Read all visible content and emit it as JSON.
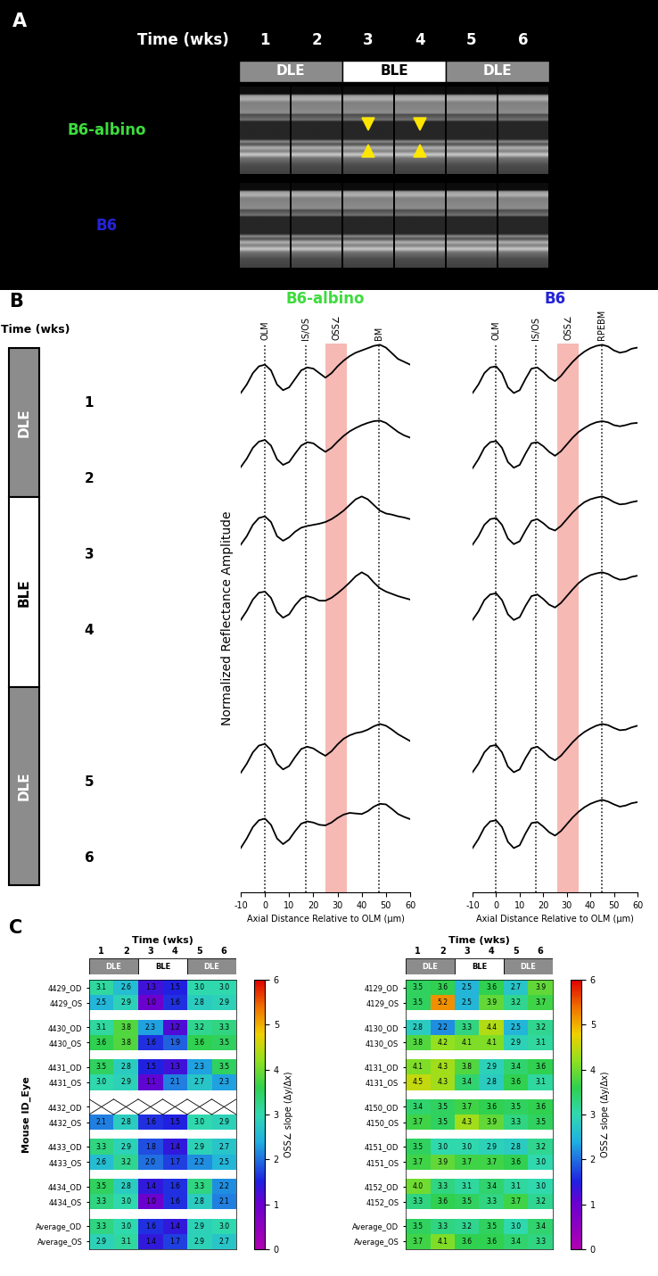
{
  "panel_labels": [
    "A",
    "B",
    "C"
  ],
  "time_label": "Time (wks)",
  "phases": [
    {
      "label": "DLE",
      "weeks": [
        1,
        2
      ],
      "color": "#8c8c8c"
    },
    {
      "label": "BLE",
      "weeks": [
        3,
        4
      ],
      "color": "#ffffff"
    },
    {
      "label": "DLE",
      "weeks": [
        5,
        6
      ],
      "color": "#8c8c8c"
    }
  ],
  "panel_a": {
    "rows": [
      {
        "label": "B6-albino",
        "color": "#3ddc3d",
        "arrow_weeks": [
          3,
          4
        ]
      },
      {
        "label": "B6",
        "color": "#2323d8",
        "arrow_weeks": []
      }
    ]
  },
  "chart_data": [
    {
      "type": "line",
      "title": "B6-albino",
      "color": "#3ddc3d",
      "x_label": "Axial Distance Relative to OLM (µm)",
      "y_label": "Normalized Reflectance Amplitude",
      "xlim": [
        -10,
        60
      ],
      "xticks": [
        -10,
        0,
        10,
        20,
        30,
        40,
        50,
        60
      ],
      "ylim": [
        0,
        1.1
      ],
      "tick_labels": "x",
      "line_style": "solid",
      "markers_v": [
        {
          "label": "OLM",
          "x": 0
        },
        {
          "label": "IS/OS",
          "x": 17
        },
        {
          "label": "BM",
          "x": 47
        }
      ],
      "band": {
        "label": "OSS∠",
        "from": 25,
        "to": 34,
        "color": "#f4a29b"
      },
      "x": [
        -10,
        -7.5,
        -5,
        -2.5,
        0,
        2.5,
        5,
        7.5,
        10,
        12.5,
        15,
        17.5,
        20,
        22.5,
        25,
        27.5,
        30,
        32.5,
        35,
        37.5,
        40,
        42.5,
        45,
        47.5,
        50,
        52.5,
        55,
        57.5,
        60
      ],
      "series": [
        {
          "color": "#000000",
          "values": [
            0.15,
            0.3,
            0.5,
            0.62,
            0.65,
            0.55,
            0.3,
            0.2,
            0.25,
            0.4,
            0.55,
            0.6,
            0.58,
            0.5,
            0.42,
            0.5,
            0.62,
            0.72,
            0.8,
            0.86,
            0.9,
            0.94,
            0.98,
            1.0,
            0.95,
            0.85,
            0.75,
            0.7,
            0.65
          ]
        },
        {
          "color": "#000000",
          "values": [
            0.18,
            0.33,
            0.52,
            0.63,
            0.66,
            0.56,
            0.32,
            0.22,
            0.27,
            0.42,
            0.56,
            0.62,
            0.6,
            0.52,
            0.45,
            0.52,
            0.63,
            0.73,
            0.81,
            0.87,
            0.92,
            0.96,
            0.99,
            1.0,
            0.96,
            0.88,
            0.8,
            0.74,
            0.7
          ]
        },
        {
          "color": "#000000",
          "values": [
            0.15,
            0.3,
            0.5,
            0.62,
            0.65,
            0.55,
            0.3,
            0.22,
            0.28,
            0.38,
            0.45,
            0.48,
            0.5,
            0.52,
            0.55,
            0.6,
            0.67,
            0.75,
            0.85,
            0.95,
            1.0,
            0.95,
            0.85,
            0.75,
            0.7,
            0.68,
            0.65,
            0.63,
            0.6
          ]
        },
        {
          "color": "#000000",
          "values": [
            0.16,
            0.32,
            0.52,
            0.64,
            0.66,
            0.55,
            0.3,
            0.2,
            0.26,
            0.42,
            0.54,
            0.58,
            0.55,
            0.5,
            0.5,
            0.55,
            0.63,
            0.72,
            0.82,
            0.93,
            1.0,
            0.94,
            0.82,
            0.72,
            0.66,
            0.62,
            0.58,
            0.55,
            0.52
          ]
        },
        {
          "color": "#000000",
          "values": [
            0.14,
            0.3,
            0.5,
            0.62,
            0.65,
            0.54,
            0.3,
            0.2,
            0.26,
            0.42,
            0.56,
            0.6,
            0.57,
            0.5,
            0.44,
            0.52,
            0.64,
            0.74,
            0.8,
            0.84,
            0.86,
            0.9,
            0.96,
            1.0,
            0.97,
            0.9,
            0.82,
            0.76,
            0.7
          ]
        },
        {
          "color": "#000000",
          "values": [
            0.15,
            0.32,
            0.52,
            0.64,
            0.67,
            0.56,
            0.32,
            0.22,
            0.3,
            0.45,
            0.58,
            0.62,
            0.6,
            0.56,
            0.55,
            0.6,
            0.68,
            0.74,
            0.77,
            0.76,
            0.75,
            0.8,
            0.88,
            0.93,
            0.92,
            0.84,
            0.75,
            0.7,
            0.66
          ]
        }
      ]
    },
    {
      "type": "line",
      "title": "B6",
      "color": "#2323d8",
      "x_label": "Axial Distance Relative to OLM (µm)",
      "xlim": [
        -10,
        60
      ],
      "xticks": [
        -10,
        0,
        10,
        20,
        30,
        40,
        50,
        60
      ],
      "ylim": [
        0,
        1.1
      ],
      "tick_labels": "x",
      "line_style": "solid",
      "markers_v": [
        {
          "label": "OLM",
          "x": 0
        },
        {
          "label": "IS/OS",
          "x": 17
        },
        {
          "label": "RPEBM",
          "x": 45
        }
      ],
      "band": {
        "label": "OSS∠",
        "from": 26,
        "to": 35,
        "color": "#f4a29b"
      },
      "x": [
        -10,
        -7.5,
        -5,
        -2.5,
        0,
        2.5,
        5,
        7.5,
        10,
        12.5,
        15,
        17.5,
        20,
        22.5,
        25,
        27.5,
        30,
        32.5,
        35,
        37.5,
        40,
        42.5,
        45,
        47.5,
        50,
        52.5,
        55,
        57.5,
        60
      ],
      "series": [
        {
          "color": "#000000",
          "values": [
            0.15,
            0.3,
            0.5,
            0.6,
            0.62,
            0.5,
            0.25,
            0.15,
            0.2,
            0.4,
            0.58,
            0.6,
            0.52,
            0.42,
            0.36,
            0.45,
            0.58,
            0.7,
            0.8,
            0.88,
            0.94,
            0.98,
            1.0,
            0.97,
            0.9,
            0.86,
            0.88,
            0.93,
            0.95
          ]
        },
        {
          "color": "#000000",
          "values": [
            0.16,
            0.32,
            0.52,
            0.62,
            0.64,
            0.52,
            0.27,
            0.17,
            0.22,
            0.42,
            0.6,
            0.62,
            0.55,
            0.45,
            0.38,
            0.46,
            0.58,
            0.7,
            0.8,
            0.87,
            0.93,
            0.97,
            0.99,
            0.97,
            0.92,
            0.9,
            0.92,
            0.95,
            0.96
          ]
        },
        {
          "color": "#000000",
          "values": [
            0.15,
            0.3,
            0.5,
            0.6,
            0.62,
            0.5,
            0.26,
            0.16,
            0.21,
            0.4,
            0.57,
            0.6,
            0.53,
            0.44,
            0.4,
            0.48,
            0.6,
            0.72,
            0.82,
            0.9,
            0.95,
            0.98,
            1.0,
            0.96,
            0.9,
            0.86,
            0.87,
            0.9,
            0.92
          ]
        },
        {
          "color": "#000000",
          "values": [
            0.16,
            0.31,
            0.51,
            0.61,
            0.63,
            0.51,
            0.26,
            0.16,
            0.21,
            0.41,
            0.58,
            0.61,
            0.53,
            0.43,
            0.38,
            0.46,
            0.58,
            0.7,
            0.81,
            0.89,
            0.95,
            0.98,
            1.0,
            0.97,
            0.91,
            0.87,
            0.88,
            0.92,
            0.94
          ]
        },
        {
          "color": "#000000",
          "values": [
            0.15,
            0.3,
            0.5,
            0.61,
            0.63,
            0.5,
            0.25,
            0.15,
            0.2,
            0.4,
            0.57,
            0.6,
            0.52,
            0.42,
            0.36,
            0.44,
            0.56,
            0.68,
            0.78,
            0.86,
            0.92,
            0.97,
            1.0,
            0.98,
            0.93,
            0.89,
            0.9,
            0.94,
            0.97
          ]
        },
        {
          "color": "#000000",
          "values": [
            0.15,
            0.31,
            0.51,
            0.62,
            0.64,
            0.52,
            0.26,
            0.15,
            0.2,
            0.41,
            0.59,
            0.61,
            0.53,
            0.43,
            0.37,
            0.45,
            0.57,
            0.69,
            0.79,
            0.87,
            0.93,
            0.97,
            1.0,
            0.97,
            0.92,
            0.88,
            0.9,
            0.94,
            0.96
          ]
        }
      ]
    },
    {
      "type": "heatmap",
      "x_label": "Time (wks)",
      "y_label": "Mouse ID_Eye",
      "x": [
        1,
        2,
        3,
        4,
        5,
        6
      ],
      "data_labels": true,
      "rows": [
        "4429_OD",
        "4429_OS",
        "4430_OD",
        "4430_OS",
        "4431_OD",
        "4431_OS",
        "4432_OD",
        "4432_OS",
        "4433_OD",
        "4433_OS",
        "4434_OD",
        "4434_OS",
        "Average_OD",
        "Average_OS"
      ],
      "cells": [
        [
          3.1,
          2.6,
          1.3,
          1.5,
          3.0,
          3.0
        ],
        [
          2.5,
          2.9,
          1.0,
          1.6,
          2.8,
          2.9
        ],
        [
          3.1,
          3.8,
          2.3,
          1.2,
          3.2,
          3.3
        ],
        [
          3.6,
          3.8,
          1.6,
          1.9,
          3.6,
          3.5
        ],
        [
          3.5,
          2.8,
          1.5,
          1.3,
          2.3,
          3.5
        ],
        [
          3.0,
          2.9,
          1.1,
          2.1,
          2.7,
          2.3
        ],
        [
          null,
          null,
          null,
          null,
          null,
          null
        ],
        [
          2.1,
          2.8,
          1.6,
          1.5,
          3.0,
          2.9
        ],
        [
          3.3,
          2.9,
          1.8,
          1.4,
          2.9,
          2.7
        ],
        [
          2.6,
          3.2,
          2.0,
          1.7,
          2.2,
          2.5
        ],
        [
          3.5,
          2.8,
          1.4,
          1.6,
          3.3,
          2.2
        ],
        [
          3.3,
          3.0,
          1.0,
          1.6,
          2.8,
          2.1
        ],
        [
          3.3,
          3.0,
          1.6,
          1.4,
          2.9,
          3.0
        ],
        [
          2.9,
          3.1,
          1.4,
          1.7,
          2.9,
          2.7
        ]
      ],
      "colorbar": {
        "label": "OSS∠ slope (Δy/Δx)",
        "range": [
          0,
          6
        ],
        "ticks": [
          0,
          1,
          2,
          3,
          4,
          5,
          6
        ]
      }
    },
    {
      "type": "heatmap",
      "x_label": "Time (wks)",
      "x": [
        1,
        2,
        3,
        4,
        5,
        6
      ],
      "data_labels": true,
      "rows": [
        "4129_OD",
        "4129_OS",
        "4130_OD",
        "4130_OS",
        "4131_OD",
        "4131_OS",
        "4150_OD",
        "4150_OS",
        "4151_OD",
        "4151_OS",
        "4152_OD",
        "4152_OS",
        "Average_OD",
        "Average_OS"
      ],
      "cells": [
        [
          3.5,
          3.6,
          2.5,
          3.6,
          2.7,
          3.9
        ],
        [
          3.5,
          5.2,
          2.5,
          3.9,
          3.2,
          3.7
        ],
        [
          2.8,
          2.2,
          3.3,
          4.4,
          2.5,
          3.2
        ],
        [
          3.8,
          4.2,
          4.1,
          4.1,
          2.9,
          3.1
        ],
        [
          4.1,
          4.3,
          3.8,
          2.9,
          3.4,
          3.6
        ],
        [
          4.5,
          4.3,
          3.4,
          2.8,
          3.6,
          3.1
        ],
        [
          3.4,
          3.5,
          3.7,
          3.6,
          3.5,
          3.6
        ],
        [
          3.7,
          3.5,
          4.3,
          3.9,
          3.3,
          3.5
        ],
        [
          3.5,
          3.0,
          3.0,
          2.9,
          2.8,
          3.2
        ],
        [
          3.7,
          3.9,
          3.7,
          3.7,
          3.6,
          3.0
        ],
        [
          4.0,
          3.3,
          3.1,
          3.4,
          3.1,
          3.0
        ],
        [
          3.3,
          3.6,
          3.5,
          3.3,
          3.7,
          3.2
        ],
        [
          3.5,
          3.3,
          3.2,
          3.5,
          3.0,
          3.4
        ],
        [
          3.7,
          4.1,
          3.6,
          3.6,
          3.4,
          3.3
        ]
      ],
      "colorbar": {
        "label": "OSS∠ slope (Δy/Δx)",
        "range": [
          0,
          6
        ],
        "ticks": [
          0,
          1,
          2,
          3,
          4,
          5,
          6
        ]
      }
    }
  ]
}
